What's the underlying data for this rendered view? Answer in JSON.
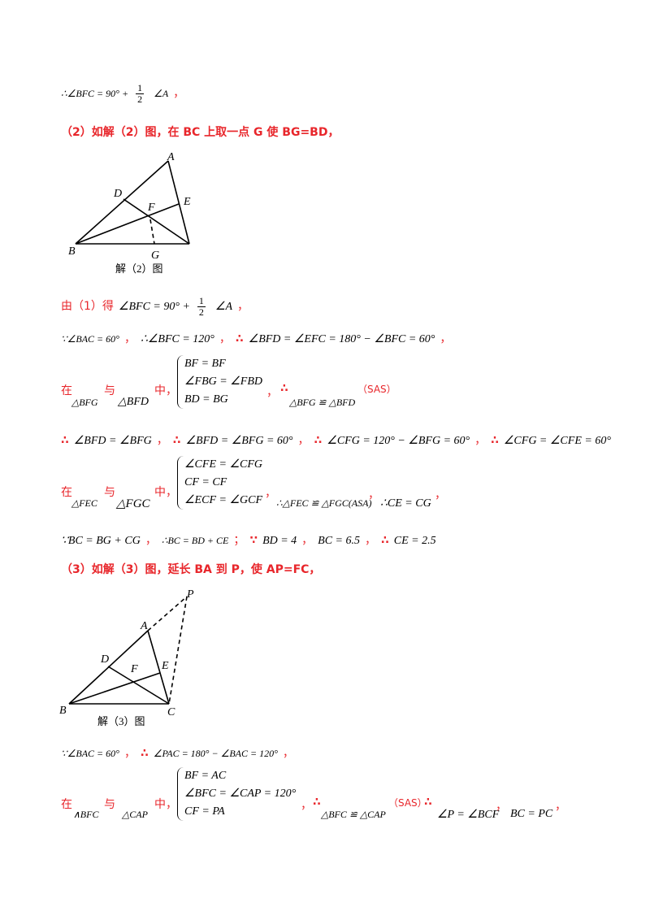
{
  "s1": {
    "math": "∴∠BFC = 90° +",
    "num": "1",
    "den": "2",
    "angle": "∠A",
    "comma": "，"
  },
  "h2": "（2）如解（2）图，在 BC 上取一点 G 使 BG=BD，",
  "fig2": {
    "A": "A",
    "D": "D",
    "E": "E",
    "F": "F",
    "B": "B",
    "G": "G",
    "caption": "解（2）图"
  },
  "s2": {
    "lead": "由（1）得",
    "math": "∠BFC = 90° +",
    "num": "1",
    "den": "2",
    "angle": "∠A",
    "comma": "，"
  },
  "s3": [
    "∵∠BAC = 60°",
    "，",
    "∴∠BFC = 120°",
    "，",
    "∴",
    "∠BFD = ∠EFC = 180° − ∠BFC = 60°",
    "，"
  ],
  "s4": {
    "zai": "在",
    "tri1": "△BFG",
    "yu": "与",
    "tri2": "△BFD",
    "zhong": "中，",
    "eqs": [
      "BF = BF",
      "∠FBG = ∠FBD",
      "BD = BG"
    ],
    "comma": "，",
    "therefore": "∴",
    "concl": "△BFG ≌ △BFD",
    "reason": "（SAS）"
  },
  "s5": [
    "∴",
    "∠BFD = ∠BFG",
    "，",
    "∴",
    "∠BFD = ∠BFG = 60°",
    "，",
    "∴",
    "∠CFG = 120° − ∠BFG = 60°",
    "，",
    "∴",
    "∠CFG = ∠CFE = 60°"
  ],
  "s6": {
    "zai": "在",
    "tri1": "△FEC",
    "yu": "与",
    "tri2": "△FGC",
    "zhong": "中，",
    "eqs": [
      "∠CFE = ∠CFG",
      "CF = CF",
      "∠ECF = ∠GCF"
    ],
    "comma": "，",
    "concl": "∴△FEC ≌ △FGC(ASA)",
    "comma2": "，",
    "result": "∴CE = CG",
    "comma3": "，"
  },
  "s7": [
    "∵BC = BG + CG",
    "，",
    "∴BC = BD + CE",
    "；",
    "∵",
    "BD = 4",
    "，",
    "BC = 6.5",
    "，",
    "∴",
    "CE = 2.5"
  ],
  "h3": "（3）如解（3）图，延长 BA 到 P，使 AP=FC，",
  "fig3": {
    "P": "P",
    "A": "A",
    "D": "D",
    "E": "E",
    "F": "F",
    "B": "B",
    "C": "C",
    "caption": "解（3）图"
  },
  "s8": [
    "∵∠BAC = 60°",
    "，",
    "∴",
    "∠PAC = 180° − ∠BAC = 120°",
    "，"
  ],
  "s9": {
    "zai": "在",
    "tri1": "∧BFC",
    "yu": "与",
    "tri2": "△CAP",
    "zhong": "中，",
    "eqs": [
      "BF = AC",
      "∠BFC = ∠CAP = 120°",
      "CF = PA"
    ],
    "comma": "，",
    "therefore": "∴",
    "concl": "△BFC ≌ △CAP",
    "reason": "（SAS）",
    "therefore2": "∴",
    "r1": "∠P = ∠BCF",
    "comma2": "，",
    "r2": "BC = PC",
    "comma3": "，"
  }
}
